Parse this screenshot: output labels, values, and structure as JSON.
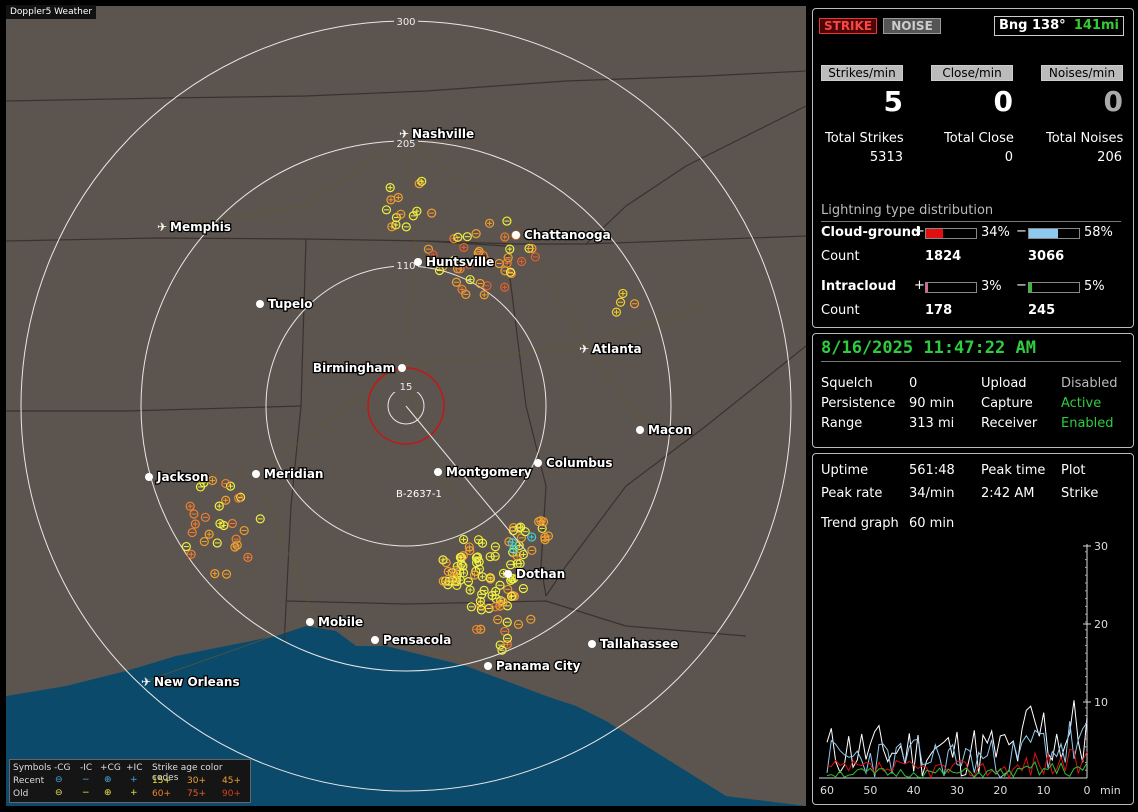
{
  "app": {
    "title": "Doppler5 Weather"
  },
  "map": {
    "ring_labels": [
      "300",
      "205",
      "110",
      "15"
    ],
    "cities": [
      {
        "name": "Nashville",
        "airport": true
      },
      {
        "name": "Memphis",
        "airport": true
      },
      {
        "name": "Chattanooga",
        "airport": false
      },
      {
        "name": "Huntsville",
        "airport": false
      },
      {
        "name": "Tupelo",
        "airport": false
      },
      {
        "name": "Atlanta",
        "airport": true
      },
      {
        "name": "Birmingham",
        "airport": false
      },
      {
        "name": "Macon",
        "airport": false
      },
      {
        "name": "Jackson",
        "airport": false
      },
      {
        "name": "Meridian",
        "airport": false
      },
      {
        "name": "Montgomery",
        "airport": false
      },
      {
        "name": "Columbus",
        "airport": false
      },
      {
        "name": "Dothan",
        "airport": false
      },
      {
        "name": "Mobile",
        "airport": false
      },
      {
        "name": "Pensacola",
        "airport": false
      },
      {
        "name": "Tallahassee",
        "airport": false
      },
      {
        "name": "Panama City",
        "airport": false
      },
      {
        "name": "New Orleans",
        "airport": true
      }
    ],
    "marker_label": "B-2637-1",
    "legend": {
      "header": [
        "Symbols",
        "-CG",
        "-IC",
        "+CG",
        "+IC",
        "Strike age color codes"
      ],
      "recent_label": "Recent",
      "old_label": "Old",
      "recent_ages": [
        "15+",
        "30+",
        "45+"
      ],
      "old_ages": [
        "60+",
        "75+",
        "90+"
      ]
    }
  },
  "status": {
    "strike_button": "STRIKE",
    "noise_button": "NOISE",
    "bearing_label": "Bng 138°",
    "range_value": "141mi",
    "rates": [
      {
        "label": "Strikes/min",
        "value": "5"
      },
      {
        "label": "Close/min",
        "value": "0"
      },
      {
        "label": "Noises/min",
        "value": "0"
      }
    ],
    "totals": [
      {
        "label": "Total Strikes",
        "value": "5313"
      },
      {
        "label": "Total Close",
        "value": "0"
      },
      {
        "label": "Total Noises",
        "value": "206"
      }
    ],
    "distribution_title": "Lightning type distribution",
    "cloud_ground": {
      "label": "Cloud-ground",
      "plus_pct": "34%",
      "minus_pct": "58%",
      "plus_frac": 0.34,
      "minus_frac": 0.58,
      "count_label": "Count",
      "plus_count": "1824",
      "minus_count": "3066"
    },
    "intracloud": {
      "label": "Intracloud",
      "plus_pct": "3%",
      "minus_pct": "5%",
      "plus_frac": 0.03,
      "minus_frac": 0.05,
      "count_label": "Count",
      "plus_count": "178",
      "minus_count": "245"
    }
  },
  "info": {
    "datetime": "8/16/2025 11:47:22 AM",
    "rows": [
      {
        "k1": "Squelch",
        "v1": "0",
        "k2": "Upload",
        "v2": "Disabled"
      },
      {
        "k1": "Persistence",
        "v1": "90 min",
        "k2": "Capture",
        "v2": "Active"
      },
      {
        "k1": "Range",
        "v1": "313 mi",
        "k2": "Receiver",
        "v2": "Enabled"
      }
    ],
    "colors": {
      "active": "#2ecc40",
      "muted": "#bbbbbb"
    }
  },
  "trend": {
    "uptime_label": "Uptime",
    "uptime_value": "561:48",
    "peak_time_label": "Peak time",
    "plot_label": "Plot",
    "peak_rate_label": "Peak rate",
    "peak_rate_value": "34/min",
    "peak_time_value": "2:42 AM",
    "plot_value": "Strike",
    "trend_graph_label": "Trend graph",
    "trend_graph_value": "60 min",
    "y_ticks": [
      "30",
      "20",
      "10"
    ],
    "x_ticks": [
      "60",
      "50",
      "40",
      "30",
      "20",
      "10",
      "0"
    ],
    "x_unit": "min"
  }
}
